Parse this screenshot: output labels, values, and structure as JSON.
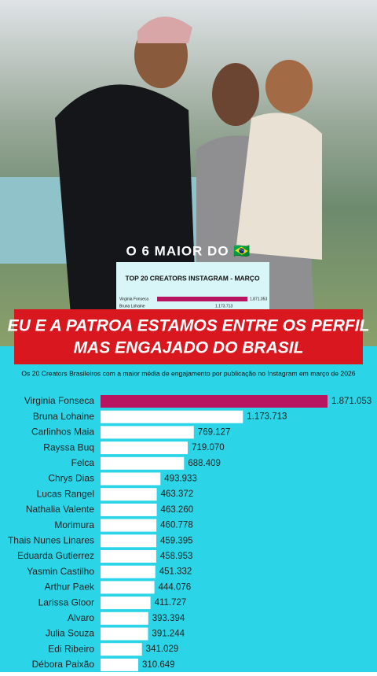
{
  "overlay": {
    "caption": "O 6 MAIOR DO 🇧🇷",
    "banner": [
      "EU E A PATROA ESTAMOS ENTRE OS PERFIL",
      "MAS ENGAJADO DO BRASIL"
    ],
    "inset": {
      "title": "TOP 20 CREATORS INSTAGRAM - MARÇO",
      "rows": [
        [
          "Virginia Fonseca",
          "1.871.053"
        ],
        [
          "Bruna Lohaine",
          "1.173.713"
        ]
      ]
    }
  },
  "chart_data": {
    "type": "bar",
    "orientation": "horizontal",
    "subtitle": "Os 20 Creators Brasileiros com a maior média de engajamento por publicação no Instagram em março de 2026",
    "categories": [
      "Virginia Fonseca",
      "Bruna Lohaine",
      "Carlinhos Maia",
      "Rayssa Buq",
      "Felca",
      "Chrys Dias",
      "Lucas Rangel",
      "Nathalia Valente",
      "Morimura",
      "Thais Nunes Linares",
      "Eduarda Gutierrez",
      "Yasmin Castilho",
      "Arthur Paek",
      "Larissa Gloor",
      "Alvaro",
      "Julia Souza",
      "Edi Ribeiro",
      "Débora Paixão"
    ],
    "values": [
      1871053,
      1173713,
      769127,
      719070,
      688409,
      493933,
      463372,
      463260,
      460778,
      459395,
      458953,
      451332,
      444076,
      411727,
      393394,
      391244,
      341029,
      310649
    ],
    "value_labels": [
      "1.871.053",
      "1.173.713",
      "769.127",
      "719.070",
      "688.409",
      "493.933",
      "463.372",
      "463.260",
      "460.778",
      "459.395",
      "458.953",
      "451.332",
      "444.076",
      "411.727",
      "393.394",
      "391.244",
      "341.029",
      "310.649"
    ],
    "colors": [
      "#b8145f",
      "#ffffff",
      "#ffffff",
      "#ffffff",
      "#ffffff",
      "#ffffff",
      "#ffffff",
      "#ffffff",
      "#ffffff",
      "#ffffff",
      "#ffffff",
      "#ffffff",
      "#ffffff",
      "#ffffff",
      "#ffffff",
      "#ffffff",
      "#ffffff",
      "#ffffff"
    ],
    "background": "#2bd4e6"
  }
}
